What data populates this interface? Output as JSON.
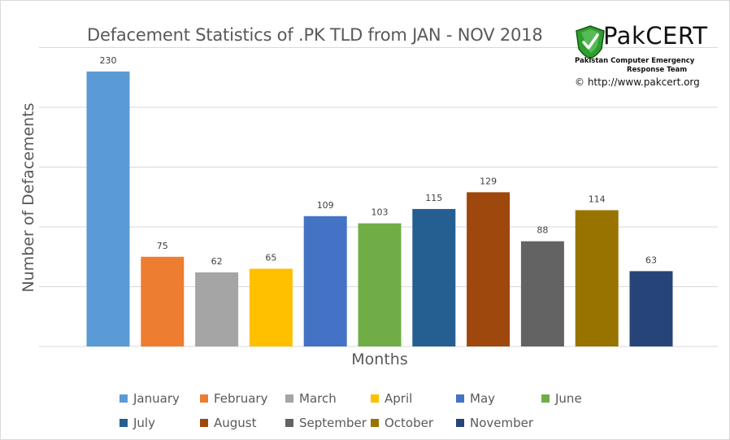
{
  "chart_data": {
    "type": "bar",
    "title": "Defacement Statistics of .PK TLD from JAN - NOV 2018",
    "xlabel": "Months",
    "ylabel": "Number of Defacements",
    "ylim": [
      0,
      250
    ],
    "gridlines": [
      0,
      50,
      100,
      150,
      200,
      250
    ],
    "grid": true,
    "legend_position": "bottom",
    "categories": [
      "January",
      "February",
      "March",
      "April",
      "May",
      "June",
      "July",
      "August",
      "September",
      "October",
      "November"
    ],
    "values": [
      230,
      75,
      62,
      65,
      109,
      103,
      115,
      129,
      88,
      114,
      63
    ],
    "colors": [
      "#5b9bd5",
      "#ed7d31",
      "#a5a5a5",
      "#ffc000",
      "#4472c4",
      "#70ad47",
      "#255e91",
      "#9e480e",
      "#636363",
      "#997300",
      "#264478"
    ]
  },
  "logo": {
    "name": "PakCERT",
    "subtitle_line1": "Pakistan Computer Emergency",
    "subtitle_line2": "Response Team",
    "url": "© http://www.pakcert.org",
    "shield_color": "#2e9e2e"
  }
}
